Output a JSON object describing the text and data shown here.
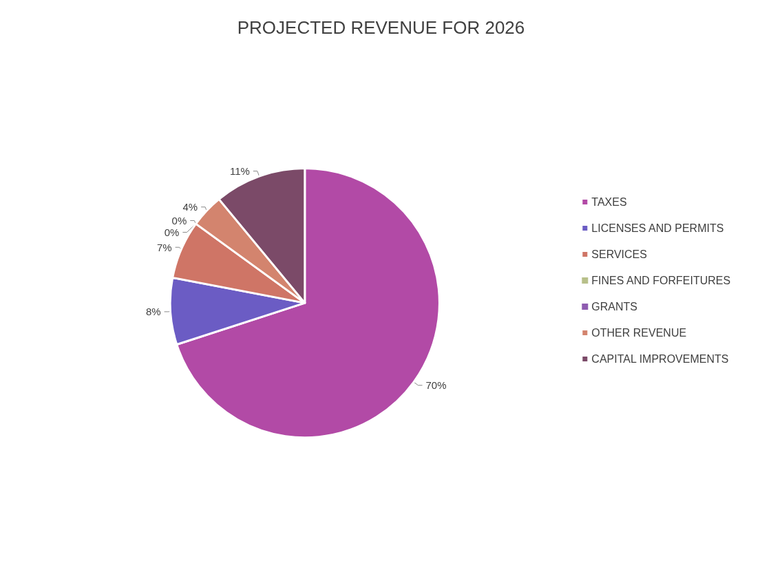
{
  "chart_data": {
    "type": "pie",
    "title": "PROJECTED REVENUE FOR 2026",
    "categories": [
      "TAXES",
      "LICENSES AND PERMITS",
      "SERVICES",
      "FINES AND FORFEITURES",
      "GRANTS",
      "OTHER REVENUE",
      "CAPITAL IMPROVEMENTS"
    ],
    "values": [
      70,
      8,
      7,
      0,
      0,
      4,
      11
    ],
    "value_labels": [
      "70%",
      "8%",
      "7%",
      "0%",
      "0%",
      "4%",
      "11%"
    ],
    "colors": [
      "#b24aa6",
      "#6b5cc4",
      "#cf7566",
      "#b8c08a",
      "#8e5cb0",
      "#d3846e",
      "#7b4a68"
    ],
    "legend": "right"
  }
}
